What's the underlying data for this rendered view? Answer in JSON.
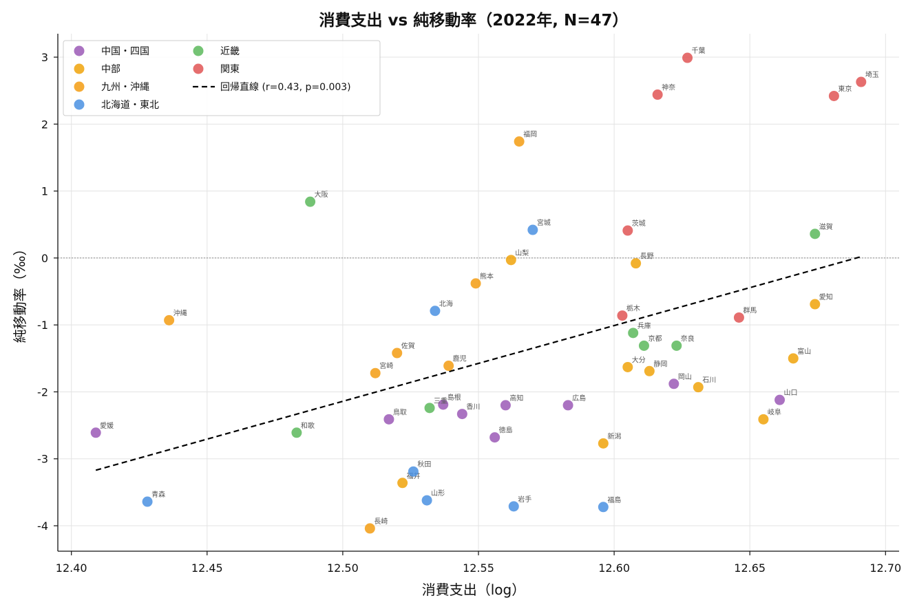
{
  "chart_data": {
    "type": "scatter",
    "title": "消費支出 vs 純移動率（2022年, N=47）",
    "xlabel": "消費支出（log）",
    "ylabel": "純移動率（‰）",
    "xlim": [
      12.395,
      12.705
    ],
    "ylim": [
      -4.38,
      3.35
    ],
    "x_ticks": [
      {
        "value": 12.4,
        "label": "12.40"
      },
      {
        "value": 12.45,
        "label": "12.45"
      },
      {
        "value": 12.5,
        "label": "12.50"
      },
      {
        "value": 12.55,
        "label": "12.55"
      },
      {
        "value": 12.6,
        "label": "12.60"
      },
      {
        "value": 12.65,
        "label": "12.65"
      },
      {
        "value": 12.7,
        "label": "12.70"
      }
    ],
    "y_ticks": [
      {
        "value": 3,
        "label": "3"
      },
      {
        "value": 2,
        "label": "2"
      },
      {
        "value": 1,
        "label": "1"
      },
      {
        "value": 0,
        "label": "0"
      },
      {
        "value": -1,
        "label": "-1"
      },
      {
        "value": -2,
        "label": "-2"
      },
      {
        "value": -3,
        "label": "-3"
      },
      {
        "value": -4,
        "label": "-4"
      }
    ],
    "grid": true,
    "zero_line": true,
    "legend_position": "top-left",
    "legend": [
      {
        "label": "中国・四国",
        "kind": "marker",
        "color": "#9b59b6"
      },
      {
        "label": "中部",
        "kind": "marker",
        "color": "#f0a30a"
      },
      {
        "label": "九州・沖縄",
        "kind": "marker",
        "color": "#f39c12"
      },
      {
        "label": "北海道・東北",
        "kind": "marker",
        "color": "#4a90e2"
      },
      {
        "label": "近畿",
        "kind": "marker",
        "color": "#5cb85c"
      },
      {
        "label": "関東",
        "kind": "marker",
        "color": "#e05555"
      },
      {
        "label": "回帰直線 (r=0.43, p=0.003)",
        "kind": "line",
        "color": "#000000"
      }
    ],
    "regression": {
      "x": [
        12.409,
        12.691
      ],
      "y": [
        -3.17,
        0.02
      ],
      "r": 0.43,
      "p": 0.003
    },
    "series": [
      {
        "name": "中国・四国",
        "color": "#9b59b6",
        "points": [
          {
            "label": "愛媛",
            "x": 12.409,
            "y": -2.61
          },
          {
            "label": "鳥取",
            "x": 12.517,
            "y": -2.41
          },
          {
            "label": "島根",
            "x": 12.537,
            "y": -2.19
          },
          {
            "label": "香川",
            "x": 12.544,
            "y": -2.33
          },
          {
            "label": "徳島",
            "x": 12.556,
            "y": -2.68
          },
          {
            "label": "高知",
            "x": 12.56,
            "y": -2.2
          },
          {
            "label": "広島",
            "x": 12.583,
            "y": -2.2
          },
          {
            "label": "岡山",
            "x": 12.622,
            "y": -1.88
          },
          {
            "label": "山口",
            "x": 12.661,
            "y": -2.12
          }
        ]
      },
      {
        "name": "中部",
        "color": "#f0a30a",
        "points": [
          {
            "label": "福井",
            "x": 12.522,
            "y": -3.36
          },
          {
            "label": "山梨",
            "x": 12.562,
            "y": -0.03
          },
          {
            "label": "新潟",
            "x": 12.596,
            "y": -2.77
          },
          {
            "label": "大分",
            "x": 12.605,
            "y": -1.63
          },
          {
            "label": "長野",
            "x": 12.608,
            "y": -0.08
          },
          {
            "label": "静岡",
            "x": 12.613,
            "y": -1.69
          },
          {
            "label": "石川",
            "x": 12.631,
            "y": -1.93
          },
          {
            "label": "岐阜",
            "x": 12.655,
            "y": -2.41
          },
          {
            "label": "富山",
            "x": 12.666,
            "y": -1.5
          },
          {
            "label": "愛知",
            "x": 12.674,
            "y": -0.69
          }
        ]
      },
      {
        "name": "九州・沖縄",
        "color": "#f39c12",
        "points": [
          {
            "label": "沖縄",
            "x": 12.436,
            "y": -0.93
          },
          {
            "label": "長崎",
            "x": 12.51,
            "y": -4.04
          },
          {
            "label": "宮崎",
            "x": 12.512,
            "y": -1.72
          },
          {
            "label": "佐賀",
            "x": 12.52,
            "y": -1.42
          },
          {
            "label": "鹿児",
            "x": 12.539,
            "y": -1.61
          },
          {
            "label": "熊本",
            "x": 12.549,
            "y": -0.38
          },
          {
            "label": "福岡",
            "x": 12.565,
            "y": 1.74
          }
        ]
      },
      {
        "name": "北海道・東北",
        "color": "#4a90e2",
        "points": [
          {
            "label": "青森",
            "x": 12.428,
            "y": -3.64
          },
          {
            "label": "秋田",
            "x": 12.526,
            "y": -3.19
          },
          {
            "label": "山形",
            "x": 12.531,
            "y": -3.62
          },
          {
            "label": "北海",
            "x": 12.534,
            "y": -0.79
          },
          {
            "label": "岩手",
            "x": 12.563,
            "y": -3.71
          },
          {
            "label": "宮城",
            "x": 12.57,
            "y": 0.42
          },
          {
            "label": "福島",
            "x": 12.596,
            "y": -3.72
          }
        ]
      },
      {
        "name": "近畿",
        "color": "#5cb85c",
        "points": [
          {
            "label": "和歌",
            "x": 12.483,
            "y": -2.61
          },
          {
            "label": "大阪",
            "x": 12.488,
            "y": 0.84
          },
          {
            "label": "三重",
            "x": 12.532,
            "y": -2.24
          },
          {
            "label": "兵庫",
            "x": 12.607,
            "y": -1.12
          },
          {
            "label": "京都",
            "x": 12.611,
            "y": -1.31
          },
          {
            "label": "奈良",
            "x": 12.623,
            "y": -1.31
          },
          {
            "label": "滋賀",
            "x": 12.674,
            "y": 0.36
          }
        ]
      },
      {
        "name": "関東",
        "color": "#e05555",
        "points": [
          {
            "label": "栃木",
            "x": 12.603,
            "y": -0.86
          },
          {
            "label": "茨城",
            "x": 12.605,
            "y": 0.41
          },
          {
            "label": "神奈",
            "x": 12.616,
            "y": 2.44
          },
          {
            "label": "千葉",
            "x": 12.627,
            "y": 2.99
          },
          {
            "label": "群馬",
            "x": 12.646,
            "y": -0.89
          },
          {
            "label": "東京",
            "x": 12.681,
            "y": 2.42
          },
          {
            "label": "埼玉",
            "x": 12.691,
            "y": 2.63
          }
        ]
      }
    ]
  }
}
